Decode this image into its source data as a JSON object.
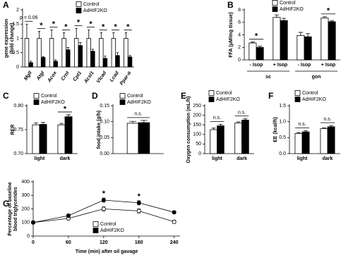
{
  "chart_data": [
    {
      "type": "bar",
      "panel": "A",
      "ylabel": [
        "gene expression",
        "(fold change)"
      ],
      "categories": [
        "Mgll",
        "Atgl",
        "Acox",
        "Crot",
        "Cpt1",
        "Acsl1",
        "Vlcad",
        "Lcad",
        "Ppar-α"
      ],
      "series": [
        {
          "name": "Control",
          "color": "#ffffff",
          "values": [
            1,
            1,
            1,
            1,
            1,
            1,
            1,
            1,
            1
          ],
          "errors": [
            0.5,
            0.25,
            0.3,
            0.2,
            0.35,
            0.3,
            0.2,
            0.2,
            0.2
          ]
        },
        {
          "name": "AdHIF2KO",
          "color": "#000000",
          "values": [
            0.15,
            0.33,
            0.2,
            0.6,
            0.75,
            0.55,
            0.3,
            0.4,
            0.35
          ],
          "errors": [
            0.05,
            0.03,
            0.05,
            0.08,
            0.1,
            0.07,
            0.08,
            0.1,
            0.05
          ]
        }
      ],
      "annotations": [
        "p = 0.06",
        "*",
        "*",
        "*",
        "*",
        "*",
        "*",
        "*",
        "*"
      ],
      "ylim": [
        0,
        2
      ],
      "yticks": [
        0,
        0.5,
        1,
        1.5,
        2
      ]
    },
    {
      "type": "bar",
      "panel": "B",
      "ylabel": "FFA (μM/mg tissue)",
      "categories": [
        "- Isop",
        "+ Isop",
        "- Isop",
        "+ Isop"
      ],
      "groups": [
        "sc",
        "gon"
      ],
      "series": [
        {
          "name": "Control",
          "color": "#ffffff",
          "values": [
            2.7,
            6.8,
            3.9,
            6.7
          ],
          "errors": [
            0.15,
            0.4,
            0.5,
            0.2
          ]
        },
        {
          "name": "AdHIF2KO",
          "color": "#000000",
          "values": [
            2.0,
            6.3,
            3.7,
            6.1
          ],
          "errors": [
            0.2,
            0.35,
            0.5,
            0.15
          ]
        }
      ],
      "annotations": [
        "*",
        null,
        null,
        "*"
      ],
      "ylim": [
        0,
        8
      ],
      "yticks": [
        0,
        2,
        4,
        6,
        8
      ]
    },
    {
      "type": "bar",
      "panel": "C",
      "ylabel": "RER",
      "categories": [
        "light",
        "dark"
      ],
      "series": [
        {
          "name": "Control",
          "color": "#ffffff",
          "values": [
            0.76,
            0.76
          ],
          "errors": [
            0.004,
            0.003
          ]
        },
        {
          "name": "AdHIF2KO",
          "color": "#000000",
          "values": [
            0.761,
            0.777
          ],
          "errors": [
            0.004,
            0.004
          ]
        }
      ],
      "annotations": [
        null,
        "*"
      ],
      "ylim": [
        0.7,
        0.8
      ],
      "yticks": [
        {
          "value": 0.7,
          "label": "0.70"
        },
        0.75,
        {
          "value": 0.8,
          "label": "0.80"
        }
      ]
    },
    {
      "type": "bar",
      "panel": "D",
      "ylabel": "food intake (g/h)",
      "categories": [
        null
      ],
      "series": [
        {
          "name": "Control",
          "color": "#ffffff",
          "values": [
            0.095
          ],
          "errors": [
            0.006
          ]
        },
        {
          "name": "AdHIF2KO",
          "color": "#000000",
          "values": [
            0.097
          ],
          "errors": [
            0.007
          ]
        }
      ],
      "annotations": [
        "n.s."
      ],
      "ylim": [
        0,
        0.15
      ],
      "yticks": [
        {
          "value": 0,
          "label": "0.00"
        },
        0.05,
        {
          "value": 0.1,
          "label": "0.10"
        },
        0.15
      ]
    },
    {
      "type": "bar",
      "panel": "E",
      "ylabel": "Oxygen consumption (mL/h)",
      "categories": [
        "light",
        "dark"
      ],
      "series": [
        {
          "name": "Control",
          "color": "#ffffff",
          "values": [
            125,
            160
          ],
          "errors": [
            8,
            6
          ]
        },
        {
          "name": "AdHIF2KO",
          "color": "#000000",
          "values": [
            145,
            175
          ],
          "errors": [
            8,
            7
          ]
        }
      ],
      "annotations": [
        "n.s.",
        "n.s."
      ],
      "ylim": [
        0,
        250
      ],
      "yticks": [
        0,
        50,
        100,
        150,
        200,
        250
      ]
    },
    {
      "type": "bar",
      "panel": "F",
      "ylabel": "EE (kcal/h)",
      "categories": [
        "light",
        "dark"
      ],
      "series": [
        {
          "name": "Control",
          "color": "#ffffff",
          "values": [
            0.63,
            0.78
          ],
          "errors": [
            0.03,
            0.03
          ]
        },
        {
          "name": "AdHIF2KO",
          "color": "#000000",
          "values": [
            0.68,
            0.84
          ],
          "errors": [
            0.04,
            0.04
          ]
        }
      ],
      "annotations": [
        "n.s.",
        "n.s."
      ],
      "ylim": [
        0,
        1.5
      ],
      "yticks": [
        {
          "value": 0,
          "label": "0.0"
        },
        0.5,
        {
          "value": 1,
          "label": "1.0"
        },
        1.5
      ]
    },
    {
      "type": "line",
      "panel": "G",
      "ylabel": [
        "Percentage of baseline",
        "blood triglycerides"
      ],
      "xlabel": "Time (min) after oil gavage",
      "x": [
        0,
        60,
        120,
        180,
        240
      ],
      "series": [
        {
          "name": "Control",
          "color": "#ffffff",
          "values": [
            100,
            130,
            200,
            185,
            105
          ],
          "errors": [
            10,
            10,
            15,
            15,
            12
          ]
        },
        {
          "name": "AdHIF2KO",
          "color": "#000000",
          "values": [
            100,
            150,
            265,
            245,
            175
          ],
          "errors": [
            10,
            12,
            15,
            15,
            10
          ]
        }
      ],
      "annotations": [
        null,
        null,
        "*",
        "*",
        null
      ],
      "xlim": [
        0,
        250
      ],
      "xticks": [
        0,
        60,
        120,
        180,
        240
      ],
      "ylim": [
        0,
        400
      ],
      "yticks": [
        0,
        100,
        200,
        300,
        400
      ]
    }
  ]
}
